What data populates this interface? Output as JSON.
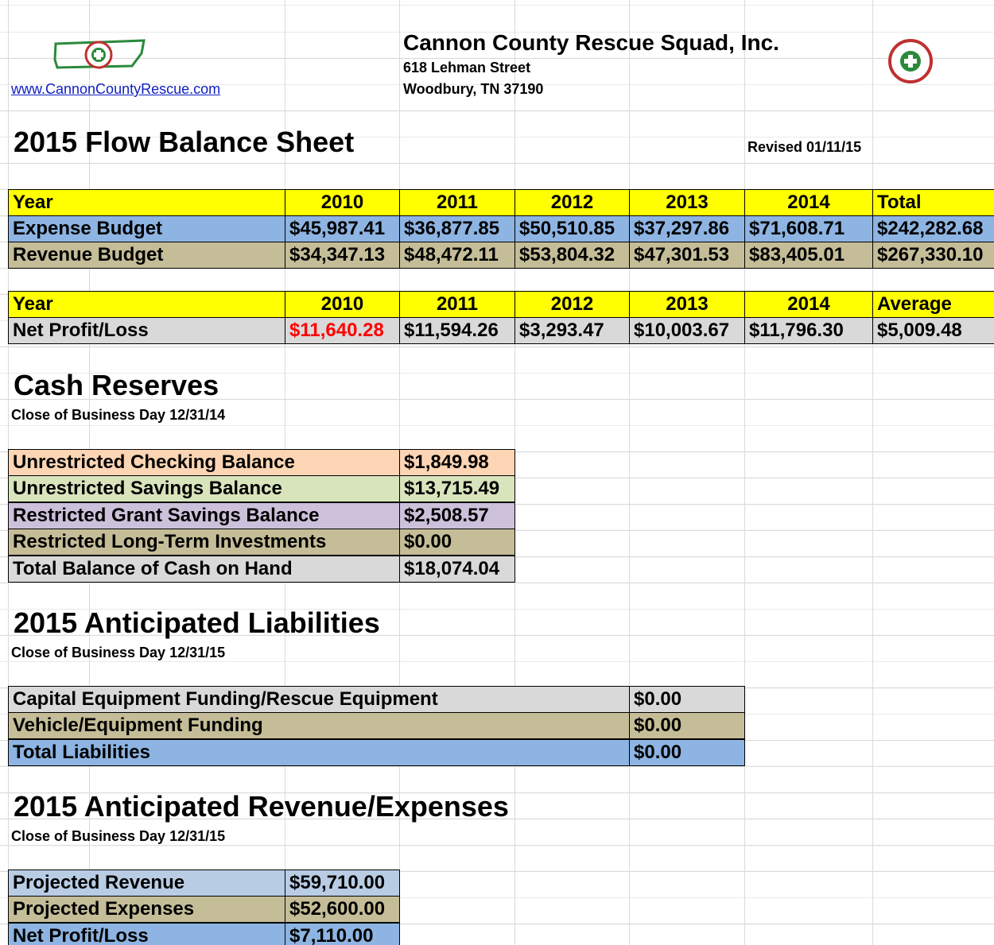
{
  "header": {
    "organization": "Cannon County Rescue Squad, Inc.",
    "street": "618 Lehman Street",
    "city": "Woodbury, TN  37190",
    "website": "www.CannonCountyRescue.com"
  },
  "title": "2015 Flow Balance Sheet",
  "revised": "Revised 01/11/15",
  "budget": {
    "header": [
      "Year",
      "2010",
      "2011",
      "2012",
      "2013",
      "2014",
      "Total"
    ],
    "rows": [
      [
        "Expense Budget",
        "$45,987.41",
        "$36,877.85",
        "$50,510.85",
        "$37,297.86",
        "$71,608.71",
        "$242,282.68"
      ],
      [
        "Revenue Budget",
        "$34,347.13",
        "$48,472.11",
        "$53,804.32",
        "$47,301.53",
        "$83,405.01",
        "$267,330.10"
      ]
    ]
  },
  "profit": {
    "header": [
      "Year",
      "2010",
      "2011",
      "2012",
      "2013",
      "2014",
      "Average"
    ],
    "rows": [
      [
        "Net Profit/Loss",
        "$11,640.28",
        "$11,594.26",
        "$3,293.47",
        "$10,003.67",
        "$11,796.30",
        "$5,009.48"
      ]
    ]
  },
  "cash_reserves": {
    "title": "Cash Reserves",
    "subtitle": "Close of Business Day 12/31/14",
    "rows": [
      [
        "Unrestricted Checking Balance",
        "$1,849.98"
      ],
      [
        "Unrestricted Savings Balance",
        "$13,715.49"
      ],
      [
        "Restricted Grant Savings Balance",
        "$2,508.57"
      ],
      [
        "Restricted Long-Term Investments",
        "$0.00"
      ],
      [
        "Total Balance of Cash on Hand",
        "$18,074.04"
      ]
    ]
  },
  "liabilities": {
    "title": "2015 Anticipated Liabilities",
    "subtitle": "Close of Business Day 12/31/15",
    "rows": [
      [
        "Capital Equipment Funding/Rescue Equipment",
        "$0.00"
      ],
      [
        "Vehicle/Equipment Funding",
        "$0.00"
      ],
      [
        "Total Liabilities",
        "$0.00"
      ]
    ]
  },
  "revenue_expenses": {
    "title": "2015 Anticipated Revenue/Expenses",
    "subtitle": "Close of Business Day 12/31/15",
    "rows": [
      [
        "Projected Revenue",
        "$59,710.00"
      ],
      [
        "Projected Expenses",
        "$52,600.00"
      ],
      [
        "Net Profit/Loss",
        "$7,110.00"
      ]
    ]
  }
}
